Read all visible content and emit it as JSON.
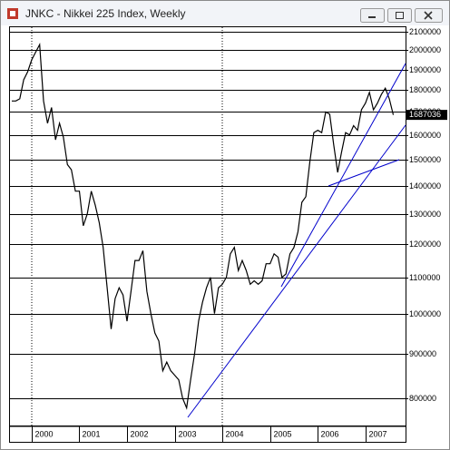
{
  "chart_data": {
    "type": "line",
    "title": "JNKC - Nikkei 225 Index, Weekly",
    "categories": [
      null,
      null,
      null,
      null,
      null,
      "2000",
      null,
      null,
      null,
      null,
      null,
      null,
      null,
      null,
      null,
      null,
      null,
      "2001",
      null,
      null,
      null,
      null,
      null,
      null,
      null,
      null,
      null,
      null,
      null,
      "2002",
      null,
      null,
      null,
      null,
      null,
      null,
      null,
      null,
      null,
      null,
      null,
      "2003",
      null,
      null,
      null,
      null,
      null,
      null,
      null,
      null,
      null,
      null,
      null,
      "2004",
      null,
      null,
      null,
      null,
      null,
      null,
      null,
      null,
      null,
      null,
      null,
      "2005",
      null,
      null,
      null,
      null,
      null,
      null,
      null,
      null,
      null,
      null,
      null,
      "2006",
      null,
      null,
      null,
      null,
      null,
      null,
      null,
      null,
      null,
      null,
      null,
      "2007",
      null,
      null,
      null,
      null,
      null,
      null,
      null
    ],
    "values": [
      1750000,
      1750000,
      1760000,
      1850000,
      1890000,
      1950000,
      1990000,
      2030000,
      1750000,
      1650000,
      1720000,
      1580000,
      1650000,
      1590000,
      1480000,
      1460000,
      1380000,
      1380000,
      1260000,
      1300000,
      1380000,
      1330000,
      1270000,
      1190000,
      1070000,
      960000,
      1040000,
      1070000,
      1050000,
      980000,
      1060000,
      1150000,
      1150000,
      1180000,
      1060000,
      1000000,
      950000,
      930000,
      860000,
      880000,
      860000,
      850000,
      840000,
      800000,
      780000,
      840000,
      900000,
      980000,
      1030000,
      1070000,
      1100000,
      1000000,
      1070000,
      1080000,
      1100000,
      1170000,
      1190000,
      1120000,
      1150000,
      1120000,
      1080000,
      1090000,
      1080000,
      1090000,
      1140000,
      1140000,
      1170000,
      1160000,
      1100000,
      1110000,
      1170000,
      1190000,
      1240000,
      1340000,
      1360000,
      1490000,
      1610000,
      1620000,
      1610000,
      1700000,
      1690000,
      1560000,
      1450000,
      1530000,
      1610000,
      1600000,
      1640000,
      1620000,
      1710000,
      1740000,
      1790000,
      1710000,
      1740000,
      1780000,
      1810000,
      1760000,
      1687036
    ],
    "color": "#000000",
    "ylim": [
      750000,
      2125000
    ],
    "yticks": [
      800000,
      900000,
      1000000,
      1100000,
      1200000,
      1300000,
      1400000,
      1500000,
      1600000,
      1700000,
      1800000,
      1900000,
      2000000,
      2100000
    ],
    "log_scale": true,
    "grid": true
  }
}
